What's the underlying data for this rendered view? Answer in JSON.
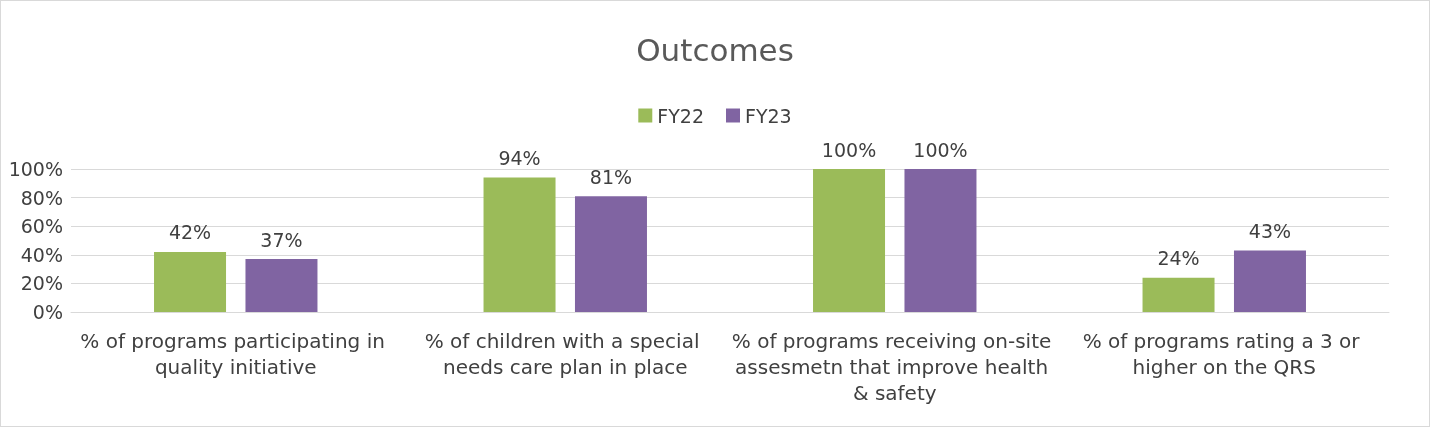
{
  "chart_data": {
    "type": "bar",
    "title": "Outcomes",
    "categories": [
      "% of programs participating in quality initiative",
      "% of children with a special needs care plan in place",
      "% of programs receiving on-site assesmetn that improve health & safety",
      "% of programs rating a 3 or higher on the QRS"
    ],
    "series": [
      {
        "name": "FY22",
        "color": "#9bbb59",
        "values": [
          42,
          94,
          100,
          24
        ],
        "value_labels": [
          "42%",
          "94%",
          "100%",
          "24%"
        ]
      },
      {
        "name": "FY23",
        "color": "#8064a2",
        "values": [
          37,
          81,
          100,
          43
        ],
        "value_labels": [
          "37%",
          "81%",
          "100%",
          "43%"
        ]
      }
    ],
    "ylim": [
      0,
      100
    ],
    "yticks": [
      {
        "value": 0,
        "label": "0%"
      },
      {
        "value": 20,
        "label": "20%"
      },
      {
        "value": 40,
        "label": "40%"
      },
      {
        "value": 60,
        "label": "60%"
      },
      {
        "value": 80,
        "label": "80%"
      },
      {
        "value": 100,
        "label": "100%"
      }
    ],
    "grid": "y",
    "legend": "top"
  }
}
